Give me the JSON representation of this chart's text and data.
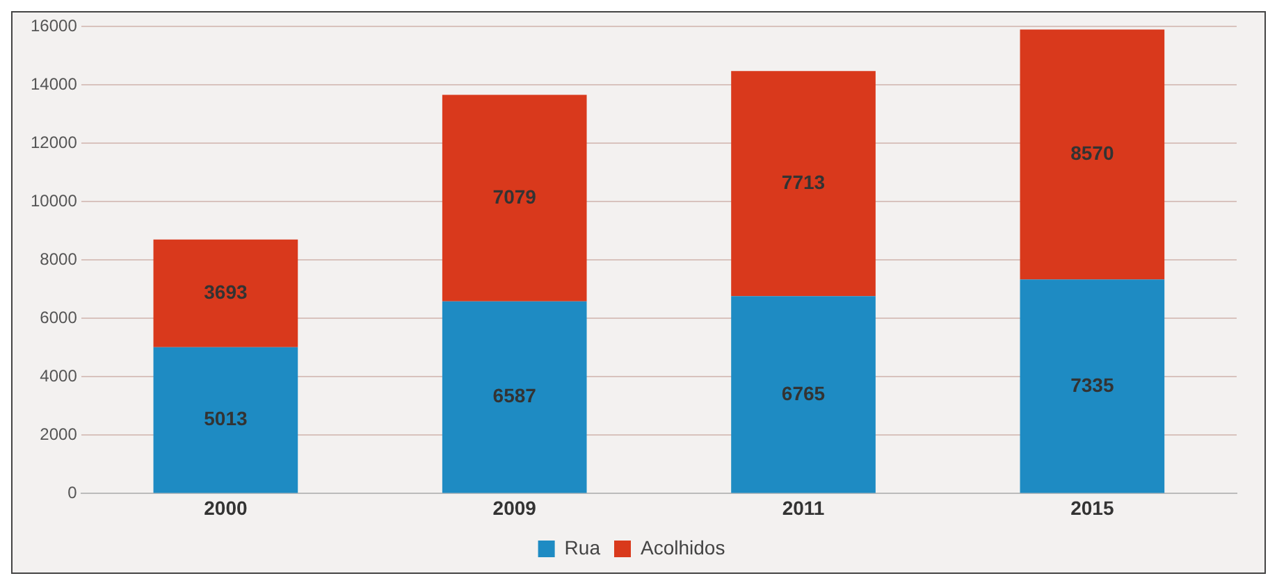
{
  "chart_data": {
    "type": "bar",
    "stacked": true,
    "categories": [
      "2000",
      "2009",
      "2011",
      "2015"
    ],
    "series": [
      {
        "name": "Rua",
        "color": "#1e8bc3",
        "values": [
          5013,
          6587,
          6765,
          7335
        ]
      },
      {
        "name": "Acolhidos",
        "color": "#d9391c",
        "values": [
          3693,
          7079,
          7713,
          8570
        ]
      }
    ],
    "ylim": [
      0,
      16000
    ],
    "yticks": [
      0,
      2000,
      4000,
      6000,
      8000,
      10000,
      12000,
      14000,
      16000
    ],
    "grid": "y",
    "legend": "bottom",
    "data_labels": true
  }
}
